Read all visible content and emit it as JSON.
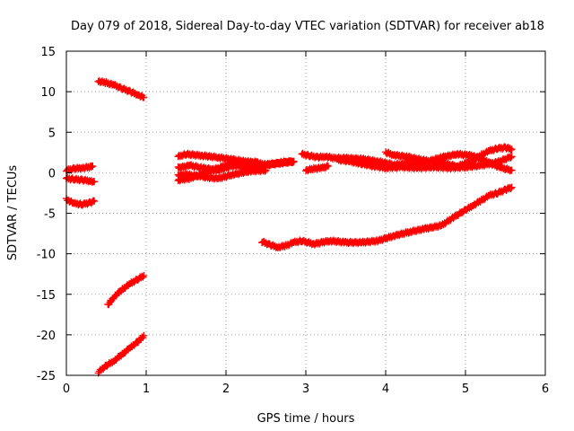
{
  "chart_data": {
    "type": "scatter",
    "title": "Day 079 of 2018, Sidereal Day-to-day VTEC variation (SDTVAR) for receiver ab18",
    "xlabel": "GPS time / hours",
    "ylabel": "SDTVAR / TECUs",
    "xlim": [
      0,
      6
    ],
    "ylim": [
      -25,
      15
    ],
    "xticks": [
      0,
      1,
      2,
      3,
      4,
      5,
      6
    ],
    "yticks": [
      -25,
      -20,
      -15,
      -10,
      -5,
      0,
      5,
      10,
      15
    ],
    "grid": true,
    "grid_style": "dotted",
    "legend": "none",
    "marker": "plus",
    "color": "#ff0000",
    "series": [
      {
        "x": [
          0.0,
          0.1,
          0.2,
          0.3,
          0.33
        ],
        "y": [
          0.3,
          0.5,
          0.6,
          0.7,
          0.8
        ]
      },
      {
        "x": [
          0.0,
          0.1,
          0.2,
          0.3,
          0.35
        ],
        "y": [
          -0.7,
          -0.8,
          -0.9,
          -1.0,
          -1.1
        ]
      },
      {
        "x": [
          0.0,
          0.1,
          0.2,
          0.3,
          0.35
        ],
        "y": [
          -3.3,
          -3.8,
          -3.9,
          -3.7,
          -3.5
        ]
      },
      {
        "x": [
          0.4,
          0.5,
          0.6,
          0.7,
          0.8,
          0.9,
          0.97
        ],
        "y": [
          11.3,
          11.1,
          10.8,
          10.4,
          10.0,
          9.6,
          9.3
        ]
      },
      {
        "x": [
          0.52,
          0.6,
          0.7,
          0.8,
          0.9,
          0.97
        ],
        "y": [
          -16.3,
          -15.3,
          -14.4,
          -13.7,
          -13.1,
          -12.7
        ]
      },
      {
        "x": [
          0.4,
          0.5,
          0.6,
          0.7,
          0.8,
          0.9,
          0.97
        ],
        "y": [
          -24.6,
          -23.8,
          -23.2,
          -22.4,
          -21.6,
          -20.8,
          -20.1
        ]
      },
      {
        "x": [
          1.4,
          1.5,
          1.7,
          1.9,
          2.1,
          2.3,
          2.5,
          2.7,
          2.85
        ],
        "y": [
          2.0,
          2.3,
          2.1,
          1.9,
          1.6,
          1.3,
          1.0,
          1.2,
          1.4
        ]
      },
      {
        "x": [
          1.4,
          1.55,
          1.7,
          1.9,
          2.1,
          2.3,
          2.5,
          2.7,
          2.85
        ],
        "y": [
          0.6,
          0.9,
          0.6,
          0.3,
          0.9,
          0.7,
          0.9,
          1.3,
          1.4
        ]
      },
      {
        "x": [
          1.4,
          1.55,
          1.7,
          1.85,
          2.0,
          2.2,
          2.4
        ],
        "y": [
          -0.9,
          -0.7,
          -0.1,
          0.4,
          0.9,
          1.3,
          1.3
        ]
      },
      {
        "x": [
          1.4,
          1.5,
          1.7,
          1.9,
          2.1,
          2.3,
          2.5
        ],
        "y": [
          -0.3,
          -0.2,
          -0.5,
          -0.7,
          -0.2,
          0.2,
          0.3
        ]
      },
      {
        "x": [
          2.45,
          2.55,
          2.65,
          2.75,
          2.85,
          2.95,
          3.1,
          3.3,
          3.5,
          3.7,
          3.9,
          4.1,
          4.3,
          4.5,
          4.7,
          4.85,
          5.0,
          5.1,
          5.2,
          5.3,
          5.4,
          5.5,
          5.58
        ],
        "y": [
          -8.5,
          -8.9,
          -9.2,
          -9.0,
          -8.6,
          -8.4,
          -8.8,
          -8.4,
          -8.6,
          -8.6,
          -8.4,
          -7.8,
          -7.3,
          -6.9,
          -6.5,
          -5.5,
          -4.6,
          -4.0,
          -3.4,
          -2.8,
          -2.5,
          -2.1,
          -1.8
        ]
      },
      {
        "x": [
          2.95,
          3.05,
          3.15,
          3.25,
          3.35,
          3.5,
          3.7,
          3.9,
          4.1,
          4.3,
          4.5,
          4.7,
          4.9,
          5.1,
          5.3,
          5.45,
          5.58
        ],
        "y": [
          2.3,
          2.1,
          1.9,
          2.0,
          1.8,
          1.8,
          1.7,
          1.4,
          1.0,
          1.1,
          1.3,
          1.9,
          2.3,
          2.1,
          1.2,
          0.6,
          0.3
        ]
      },
      {
        "x": [
          3.4,
          3.55,
          3.7,
          3.85,
          4.0,
          4.2,
          4.4,
          4.6,
          4.8,
          5.0,
          5.2,
          5.4,
          5.58
        ],
        "y": [
          1.6,
          1.4,
          1.1,
          0.8,
          0.6,
          0.7,
          0.6,
          0.7,
          0.6,
          0.7,
          0.9,
          1.3,
          2.0
        ]
      },
      {
        "x": [
          3.0,
          3.1,
          3.2,
          3.28
        ],
        "y": [
          0.3,
          0.5,
          0.6,
          0.8
        ]
      },
      {
        "x": [
          4.0,
          4.1,
          4.3,
          4.5,
          4.7,
          4.9,
          5.1,
          5.2,
          5.3,
          5.4,
          5.5,
          5.58
        ],
        "y": [
          2.5,
          2.2,
          1.9,
          1.5,
          1.2,
          0.8,
          1.5,
          2.2,
          2.7,
          3.0,
          3.1,
          2.9
        ]
      }
    ]
  }
}
